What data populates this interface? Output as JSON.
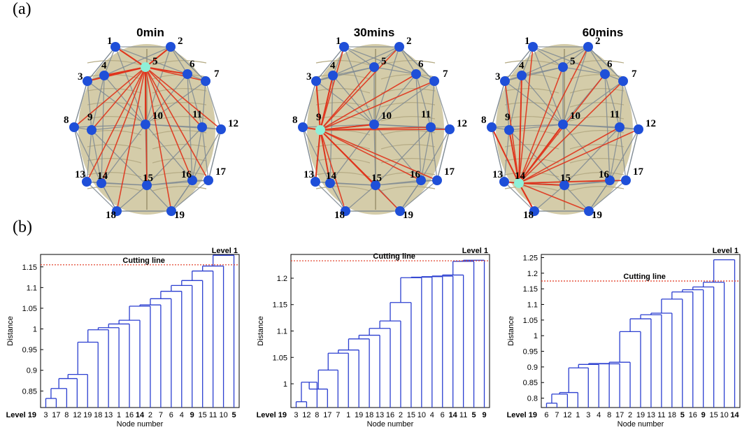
{
  "panel_labels": {
    "a": "(a)",
    "b": "(b)"
  },
  "networks": [
    {
      "title": "0min",
      "highlight_node": "5"
    },
    {
      "title": "30mins",
      "highlight_node": "9"
    },
    {
      "title": "60mins",
      "highlight_node": "14"
    }
  ],
  "node_labels": [
    "1",
    "2",
    "3",
    "4",
    "5",
    "6",
    "7",
    "8",
    "9",
    "10",
    "11",
    "12",
    "13",
    "14",
    "15",
    "16",
    "17",
    "18",
    "19"
  ],
  "colors": {
    "node": "#1f4fd8",
    "highlight_node": "#8ef0d8",
    "edge": "#7f8a93",
    "highlight_edge": "#e0341c",
    "brain": "#cdc39a",
    "dendrogram": "#2b3fd0",
    "cutting_line": "#e0341c"
  },
  "chart_data": [
    {
      "type": "dendrogram",
      "title": "",
      "xlabel": "Node number",
      "ylabel": "Distance",
      "ylim": [
        0.81,
        1.18
      ],
      "yticks": [
        "0.85",
        "0.9",
        "0.95",
        "1",
        "1.05",
        "1.1",
        "1.15"
      ],
      "leaf_order": [
        "3",
        "17",
        "8",
        "12",
        "19",
        "18",
        "13",
        "1",
        "16",
        "14",
        "2",
        "7",
        "6",
        "4",
        "9",
        "15",
        "11",
        "10",
        "5"
      ],
      "bold_leaves": [
        "14",
        "9",
        "5"
      ],
      "merge_heights": [
        0.832,
        0.856,
        0.88,
        0.89,
        0.968,
        0.998,
        1.003,
        1.012,
        1.021,
        1.055,
        1.058,
        1.073,
        1.091,
        1.105,
        1.117,
        1.14,
        1.152,
        1.178
      ],
      "cutting_line_value": 1.155,
      "cutting_line_label": "Cutting line",
      "top_level_label": "Level 1",
      "bottom_level_label": "Level 19"
    },
    {
      "type": "dendrogram",
      "title": "",
      "xlabel": "Node number",
      "ylabel": "Distance",
      "ylim": [
        0.955,
        1.245
      ],
      "yticks": [
        "1",
        "1.05",
        "1.1",
        "1.15",
        "1.2"
      ],
      "leaf_order": [
        "3",
        "12",
        "8",
        "17",
        "7",
        "1",
        "19",
        "18",
        "13",
        "16",
        "2",
        "15",
        "10",
        "4",
        "6",
        "14",
        "11",
        "5",
        "9"
      ],
      "bold_leaves": [
        "14",
        "5",
        "9"
      ],
      "merge_heights": [
        0.966,
        1.003,
        0.99,
        1.026,
        1.058,
        1.064,
        1.085,
        1.092,
        1.105,
        1.119,
        1.154,
        1.201,
        1.202,
        1.203,
        1.204,
        1.206,
        1.232,
        1.234
      ],
      "cutting_line_value": 1.233,
      "cutting_line_label": "Cutting line",
      "top_level_label": "Level 1",
      "bottom_level_label": "Level 19"
    },
    {
      "type": "dendrogram",
      "title": "",
      "xlabel": "Node number",
      "ylabel": "Distance",
      "ylim": [
        0.77,
        1.26
      ],
      "yticks": [
        "0.8",
        "0.85",
        "0.9",
        "0.95",
        "1",
        "1.05",
        "1.1",
        "1.15",
        "1.2",
        "1.25"
      ],
      "leaf_order": [
        "6",
        "7",
        "12",
        "1",
        "3",
        "4",
        "8",
        "17",
        "2",
        "19",
        "13",
        "11",
        "18",
        "5",
        "16",
        "9",
        "15",
        "10",
        "14"
      ],
      "bold_leaves": [
        "5",
        "9",
        "14"
      ],
      "merge_heights": [
        0.784,
        0.813,
        0.818,
        0.897,
        0.908,
        0.911,
        0.91,
        0.915,
        1.013,
        1.054,
        1.067,
        1.072,
        1.117,
        1.14,
        1.147,
        1.156,
        1.171,
        1.243
      ],
      "cutting_line_value": 1.175,
      "cutting_line_label": "Cutting line",
      "top_level_label": "Level 1",
      "bottom_level_label": "Level 19"
    }
  ]
}
